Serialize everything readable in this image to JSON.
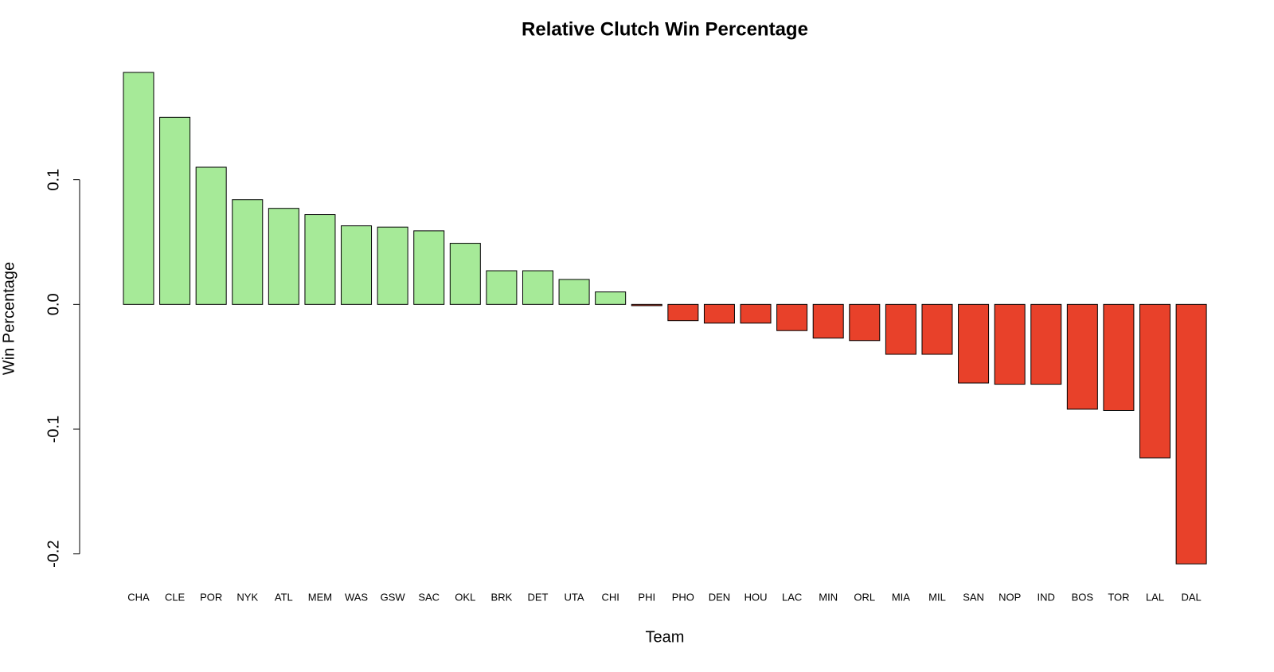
{
  "chart_data": {
    "type": "bar",
    "title": "Relative Clutch Win Percentage",
    "x_label": "Team",
    "y_label": "Win Percentage",
    "categories": [
      "CHA",
      "CLE",
      "POR",
      "NYK",
      "ATL",
      "MEM",
      "WAS",
      "GSW",
      "SAC",
      "OKL",
      "BRK",
      "DET",
      "UTA",
      "CHI",
      "PHI",
      "PHO",
      "DEN",
      "HOU",
      "LAC",
      "MIN",
      "ORL",
      "MIA",
      "MIL",
      "SAN",
      "NOP",
      "IND",
      "BOS",
      "TOR",
      "LAL",
      "DAL"
    ],
    "values": [
      0.186,
      0.15,
      0.11,
      0.084,
      0.077,
      0.072,
      0.063,
      0.062,
      0.059,
      0.049,
      0.027,
      0.027,
      0.02,
      0.01,
      -0.001,
      -0.013,
      -0.015,
      -0.015,
      -0.021,
      -0.027,
      -0.029,
      -0.04,
      -0.04,
      -0.063,
      -0.064,
      -0.064,
      -0.084,
      -0.085,
      -0.123,
      -0.208
    ],
    "positive_color": "#a6ea98",
    "negative_color": "#e8412a",
    "ylim": [
      -0.22,
      0.2
    ],
    "yticks": [
      -0.2,
      -0.1,
      {
        "value": 0,
        "label": "0.0"
      },
      0.1
    ],
    "grid": false
  }
}
